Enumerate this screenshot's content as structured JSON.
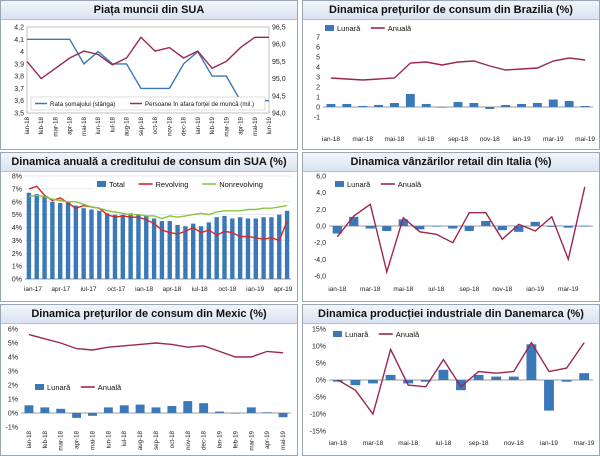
{
  "colors": {
    "bar": "#3a78b8",
    "line": "#9b2752",
    "red": "#d42a26",
    "green": "#8bc53f",
    "grid": "#cfd6de"
  },
  "chart_data": [
    {
      "id": "us_labor",
      "type": "line",
      "title": "Piața muncii din SUA",
      "x": [
        "ian-18",
        "feb-18",
        "mar-18",
        "apr-18",
        "mai-18",
        "iun-18",
        "iul-18",
        "aug-18",
        "sep-18",
        "oct-18",
        "nov-18",
        "dec-18",
        "ian-19",
        "feb-19",
        "mar-19",
        "apr-19",
        "mai-19",
        "iun-19"
      ],
      "y1_ticks": [
        "3,5",
        "3,6",
        "3,7",
        "3,8",
        "3,9",
        "4",
        "4,1",
        "4,2"
      ],
      "y1lim": [
        3.5,
        4.2
      ],
      "y2_ticks": [
        "94,0",
        "94,5",
        "95,0",
        "95,5",
        "96,0",
        "96,5"
      ],
      "y2lim": [
        94.0,
        96.5
      ],
      "series": [
        {
          "name": "Rata șomajului (stânga)",
          "axis": "left",
          "color": "#3a78b8",
          "values": [
            4.1,
            4.1,
            4.1,
            4.1,
            3.9,
            4.0,
            3.9,
            3.9,
            3.7,
            3.7,
            3.7,
            3.9,
            4.0,
            3.8,
            3.8,
            3.6,
            3.6,
            3.6
          ]
        },
        {
          "name": "Persoane în afara forței de muncă (mil.)",
          "axis": "right",
          "color": "#9b2752",
          "values": [
            95.5,
            95.0,
            95.3,
            95.6,
            95.8,
            95.7,
            95.4,
            95.6,
            96.2,
            95.8,
            95.9,
            95.6,
            95.8,
            95.3,
            95.5,
            95.9,
            96.2,
            96.2
          ]
        }
      ]
    },
    {
      "id": "br_cpi",
      "type": "bar+line",
      "title": "Dinamica prețurilor de consum din Brazilia (%)",
      "x": [
        "ian-18",
        "feb-18",
        "mar-18",
        "apr-18",
        "mai-18",
        "iun-18",
        "iul-18",
        "aug-18",
        "sep-18",
        "oct-18",
        "nov-18",
        "dec-18",
        "ian-19",
        "feb-19",
        "mar-19",
        "apr-19",
        "mai-19"
      ],
      "x_labels": [
        "ian-18",
        "mar-18",
        "mai-18",
        "iul-18",
        "sep-18",
        "nov-18",
        "ian-19",
        "mar-19",
        "mai-19"
      ],
      "y_ticks": [
        "-1",
        "0",
        "1",
        "2",
        "3",
        "4",
        "5",
        "6",
        "7"
      ],
      "ylim": [
        -1,
        7
      ],
      "series": [
        {
          "name": "Lunară",
          "kind": "bar",
          "values": [
            0.3,
            0.3,
            0.1,
            0.2,
            0.4,
            1.3,
            0.3,
            0.0,
            0.5,
            0.4,
            -0.2,
            0.2,
            0.3,
            0.4,
            0.75,
            0.6,
            0.1
          ]
        },
        {
          "name": "Anuală",
          "kind": "line",
          "values": [
            2.9,
            2.8,
            2.7,
            2.8,
            2.9,
            4.4,
            4.5,
            4.2,
            4.5,
            4.6,
            4.1,
            3.7,
            3.8,
            3.9,
            4.6,
            4.9,
            4.7
          ]
        }
      ]
    },
    {
      "id": "us_credit",
      "type": "bar+line",
      "title": "Dinamica anuală a creditului de consum din SUA (%)",
      "x_labels": [
        "ian-17",
        "apr-17",
        "iul-17",
        "oct-17",
        "ian-18",
        "apr-18",
        "iul-18",
        "oct-18",
        "ian-19",
        "apr-19"
      ],
      "y_ticks": [
        "0%",
        "1%",
        "2%",
        "3%",
        "4%",
        "5%",
        "6%",
        "7%",
        "8%"
      ],
      "ylim": [
        0,
        8
      ],
      "series": [
        {
          "name": "Total",
          "kind": "bar",
          "values": [
            6.7,
            6.6,
            6.4,
            6.0,
            5.9,
            6.0,
            5.7,
            5.5,
            5.4,
            5.3,
            5.1,
            5.0,
            5.0,
            5.1,
            5.0,
            4.9,
            4.7,
            4.5,
            4.5,
            4.2,
            4.1,
            4.3,
            4.1,
            4.4,
            4.8,
            4.9,
            4.7,
            4.8,
            4.7,
            4.7,
            4.8,
            4.8,
            5.0,
            5.3
          ]
        },
        {
          "name": "Revolving",
          "kind": "line",
          "color": "#d42a26",
          "values": [
            7.0,
            7.2,
            6.5,
            6.1,
            6.3,
            5.9,
            5.5,
            5.7,
            5.6,
            5.5,
            5.0,
            4.8,
            4.9,
            4.8,
            4.8,
            4.6,
            4.3,
            3.8,
            3.6,
            3.5,
            3.7,
            4.0,
            3.6,
            3.8,
            3.4,
            3.7,
            3.6,
            3.3,
            3.3,
            3.2,
            3.1,
            3.2,
            3.0,
            4.5
          ]
        },
        {
          "name": "Nonrevolving",
          "kind": "line",
          "color": "#8bc53f",
          "values": [
            6.4,
            6.5,
            6.4,
            6.2,
            6.1,
            6.0,
            6.0,
            5.8,
            5.6,
            5.5,
            5.3,
            5.2,
            5.1,
            5.0,
            5.0,
            4.9,
            4.9,
            4.7,
            4.9,
            4.8,
            4.9,
            5.0,
            5.1,
            5.0,
            5.2,
            5.3,
            5.3,
            5.3,
            5.4,
            5.4,
            5.5,
            5.5,
            5.6,
            5.7
          ]
        }
      ]
    },
    {
      "id": "it_retail",
      "type": "bar+line",
      "title": "Dinamica vânzărilor retail din Italia (%)",
      "x_labels": [
        "ian-18",
        "mar-18",
        "mai-18",
        "iul-18",
        "sep-18",
        "nov-18",
        "ian-19",
        "mar-19"
      ],
      "y_ticks": [
        "-6,0",
        "-4,0",
        "-2,0",
        "0,0",
        "2,0",
        "4,0",
        "6,0"
      ],
      "ylim": [
        -6,
        6
      ],
      "series": [
        {
          "name": "Lunară",
          "kind": "bar",
          "values": [
            -0.9,
            1.1,
            -0.3,
            -0.6,
            0.8,
            -0.4,
            0.0,
            -0.3,
            -0.6,
            0.6,
            -0.5,
            -0.7,
            0.5,
            -0.1,
            -0.2,
            0.0
          ]
        },
        {
          "name": "Anuală",
          "kind": "line",
          "values": [
            -1.3,
            1.2,
            2.6,
            -5.5,
            1.0,
            -0.7,
            -1.0,
            -2.0,
            1.6,
            1.6,
            -1.6,
            0.2,
            -0.6,
            1.1,
            -4.0,
            4.7
          ]
        }
      ]
    },
    {
      "id": "mx_cpi",
      "type": "bar+line",
      "title": "Dinamica prețurilor de consum din Mexic (%)",
      "x": [
        "ian-18",
        "feb-18",
        "mar-18",
        "apr-18",
        "mai-18",
        "iun-18",
        "iul-18",
        "aug-18",
        "sep-18",
        "oct-18",
        "nov-18",
        "dec-18",
        "ian-19",
        "feb-19",
        "mar-19",
        "apr-19",
        "mai-19"
      ],
      "y_ticks": [
        "-1%",
        "0%",
        "1%",
        "2%",
        "3%",
        "4%",
        "5%",
        "6%"
      ],
      "ylim": [
        -1,
        6
      ],
      "series": [
        {
          "name": "Lunară",
          "kind": "bar",
          "values": [
            0.55,
            0.4,
            0.3,
            -0.35,
            -0.2,
            0.4,
            0.55,
            0.6,
            0.4,
            0.5,
            0.85,
            0.7,
            0.1,
            0.0,
            0.4,
            0.05,
            -0.3
          ]
        },
        {
          "name": "Anuală",
          "kind": "line",
          "values": [
            5.6,
            5.3,
            5.0,
            4.6,
            4.5,
            4.7,
            4.8,
            4.9,
            5.0,
            4.9,
            4.7,
            4.8,
            4.4,
            4.0,
            4.0,
            4.4,
            4.3
          ]
        }
      ]
    },
    {
      "id": "dk_ip",
      "type": "bar+line",
      "title": "Dinamica producției industriale din Danemarca (%)",
      "x_labels": [
        "ian-18",
        "mar-18",
        "mai-18",
        "iul-18",
        "sep-18",
        "nov-18",
        "ian-19",
        "mar-19"
      ],
      "y_ticks": [
        "-15%",
        "-10%",
        "-5%",
        "0%",
        "5%",
        "10%",
        "15%"
      ],
      "ylim": [
        -15,
        15
      ],
      "series": [
        {
          "name": "Lunară",
          "kind": "bar",
          "values": [
            -0.5,
            -1.5,
            -1.0,
            1.5,
            -1.0,
            -0.5,
            3.0,
            -3.0,
            1.5,
            1.0,
            1.0,
            10.5,
            -9.0,
            -0.5,
            2.0
          ]
        },
        {
          "name": "Anuală",
          "kind": "line",
          "values": [
            0.0,
            -3.0,
            -10.0,
            9.0,
            -1.5,
            -2.0,
            6.0,
            -2.0,
            2.5,
            2.0,
            2.5,
            11.0,
            2.5,
            3.5,
            11.0
          ]
        }
      ]
    }
  ]
}
